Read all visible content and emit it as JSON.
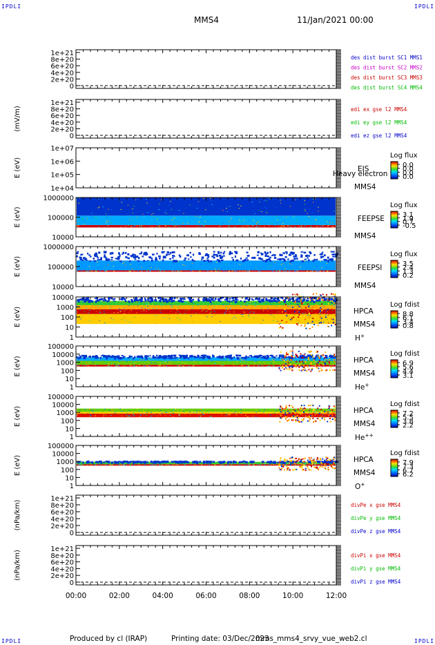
{
  "corner_labels": {
    "top_left": "IPDLI",
    "top_right": "IPDLI",
    "bottom_left": "IPDLI",
    "bottom_right": "IPDLI"
  },
  "header": {
    "spacecraft": "MMS4",
    "date": "11/Jan/2021 00:00"
  },
  "footer": {
    "produced_by": "Produced by cl (IRAP)",
    "printing_date": "Printing date: 03/Dec/2023",
    "script": "mms_mms4_srvy_vue_web2.cl"
  },
  "chart_data": [
    {
      "id": "des_dist",
      "type": "line",
      "ylabel": "",
      "yticks": [
        "0",
        "2e+20",
        "4e+20",
        "6e+20",
        "8e+20",
        "1e+21"
      ],
      "zero_dashed": true,
      "legend": [
        {
          "text": "des dist burst SC1 MMS1",
          "color": "#0000cc"
        },
        {
          "text": "des dist burst SC2 MMS2",
          "color": "#cc00cc"
        },
        {
          "text": "des dist burst SC3 MMS3",
          "color": "#cc0000"
        },
        {
          "text": "des dist burst SC4 MMS4",
          "color": "#00bb00"
        }
      ]
    },
    {
      "id": "edi",
      "type": "line",
      "ylabel": "(mV/m)",
      "yticks": [
        "0",
        "2e+20",
        "4e+20",
        "6e+20",
        "8e+20",
        "1e+21"
      ],
      "zero_dashed": true,
      "legend": [
        {
          "text": "edi ex gse l2 MMS4",
          "color": "#cc0000"
        },
        {
          "text": "edi ey gse l2 MMS4",
          "color": "#00bb00"
        },
        {
          "text": "edi ez gse l2 MMS4",
          "color": "#0000cc"
        }
      ]
    },
    {
      "id": "eis",
      "type": "heatmap",
      "ylabel": "E (eV)",
      "yscale": "log",
      "yticks": [
        "1e+04",
        "1e+05",
        "1e+06",
        "1e+07"
      ],
      "instrument": [
        "EIS",
        "MMS4"
      ],
      "overlay_text": "Heavy electron to",
      "colorbar": {
        "title": "Log flux",
        "ticks": [
          "0.0",
          "0.0",
          "0.0",
          "0.0"
        ]
      },
      "data": "empty"
    },
    {
      "id": "feepse",
      "type": "heatmap",
      "ylabel": "E (eV)",
      "yscale": "log",
      "ylim": [
        10000,
        1000000
      ],
      "yticks": [
        "10000",
        "100000",
        "1000000"
      ],
      "instrument": [
        "FEEPSE",
        "MMS4"
      ],
      "colorbar": {
        "title": "Log flux",
        "ticks": [
          "3.1",
          "1.9",
          "0.7",
          "-0.5"
        ]
      },
      "bands": [
        {
          "e_min": 30000,
          "e_max": 40000,
          "level": "high",
          "color": "#cc0000"
        },
        {
          "e_min": 40000,
          "e_max": 120000,
          "level": "medium",
          "color": "#00aaff"
        },
        {
          "e_min": 120000,
          "e_max": 1000000,
          "level": "low",
          "color": "#0033cc"
        }
      ],
      "x_range": [
        "00:00",
        "12:00"
      ]
    },
    {
      "id": "feepsi",
      "type": "heatmap",
      "ylabel": "E (eV)",
      "yscale": "log",
      "ylim": [
        10000,
        1000000
      ],
      "yticks": [
        "10000",
        "100000",
        "1000000"
      ],
      "instrument": [
        "FEEPSI",
        "MMS4"
      ],
      "colorbar": {
        "title": "Log flux",
        "ticks": [
          "3.5",
          "2.4",
          "1.3",
          "0.2"
        ]
      },
      "bands": [
        {
          "e_min": 55000,
          "e_max": 65000,
          "level": "high",
          "color": "#cc0000"
        },
        {
          "e_min": 65000,
          "e_max": 200000,
          "level": "medium",
          "color": "#0099ff"
        },
        {
          "e_min": 200000,
          "e_max": 600000,
          "level": "sparse",
          "color": "#0033cc"
        }
      ],
      "x_range": [
        "00:00",
        "12:00"
      ]
    },
    {
      "id": "hpca_h",
      "type": "heatmap",
      "ylabel": "E (eV)",
      "yscale": "log",
      "ylim": [
        1,
        10000
      ],
      "yticks": [
        "1",
        "10",
        "100",
        "1000",
        "10000"
      ],
      "instrument": [
        "HPCA",
        "MMS4"
      ],
      "species": {
        "base": "H",
        "sup": "+"
      },
      "colorbar": {
        "title": "Log fdist",
        "ticks": [
          "8.8",
          "6.1",
          "3.4",
          "0.8"
        ]
      },
      "bands": [
        {
          "e_min": 20,
          "e_max": 200,
          "level": "low-mid",
          "color": "#ffcc00"
        },
        {
          "e_min": 200,
          "e_max": 600,
          "level": "high",
          "color": "#cc0000"
        },
        {
          "e_min": 600,
          "e_max": 1500,
          "level": "mid",
          "color": "#ffaa00"
        },
        {
          "e_min": 1500,
          "e_max": 4000,
          "level": "low",
          "color": "#33cc33"
        },
        {
          "e_min": 4000,
          "e_max": 15000,
          "level": "sparse",
          "color": "#0033cc"
        }
      ],
      "enhancement": {
        "from": "09:20",
        "to": "12:00"
      }
    },
    {
      "id": "hpca_he",
      "type": "heatmap",
      "ylabel": "E (eV)",
      "yscale": "log",
      "ylim": [
        1,
        100000
      ],
      "yticks": [
        "1",
        "10",
        "100",
        "1000",
        "10000",
        "100000"
      ],
      "instrument": [
        "HPCA",
        "MMS4"
      ],
      "species": {
        "base": "He",
        "sup": "+"
      },
      "colorbar": {
        "title": "Log fdist",
        "ticks": [
          "6.9",
          "5.6",
          "4.4",
          "3.1"
        ]
      },
      "bands": [
        {
          "e_min": 300,
          "e_max": 500,
          "level": "high",
          "color": "#cc0000"
        },
        {
          "e_min": 500,
          "e_max": 1500,
          "level": "mid",
          "color": "#66cc00"
        },
        {
          "e_min": 1500,
          "e_max": 4000,
          "level": "low",
          "color": "#00aaff"
        },
        {
          "e_min": 4000,
          "e_max": 9000,
          "level": "sparse",
          "color": "#0033cc"
        }
      ],
      "enhancement": {
        "from": "09:20",
        "to": "12:00"
      }
    },
    {
      "id": "hpca_he2",
      "type": "heatmap",
      "ylabel": "E (eV)",
      "yscale": "log",
      "ylim": [
        1,
        100000
      ],
      "yticks": [
        "1",
        "10",
        "100",
        "1000",
        "10000",
        "100000"
      ],
      "instrument": [
        "HPCA",
        "MMS4"
      ],
      "species": {
        "base": "He",
        "sup": "++"
      },
      "colorbar": {
        "title": "Log fdist",
        "ticks": [
          "7.2",
          "5.5",
          "3.8",
          "2.2"
        ]
      },
      "bands": [
        {
          "e_min": 250,
          "e_max": 700,
          "level": "high",
          "color": "#dd1100"
        },
        {
          "e_min": 700,
          "e_max": 1200,
          "level": "mid",
          "color": "#ffcc00"
        },
        {
          "e_min": 1200,
          "e_max": 3000,
          "level": "low",
          "color": "#66cc00"
        }
      ],
      "enhancement": {
        "from": "09:20",
        "to": "12:00"
      }
    },
    {
      "id": "hpca_o",
      "type": "heatmap",
      "ylabel": "E (eV)",
      "yscale": "log",
      "ylim": [
        1,
        100000
      ],
      "yticks": [
        "1",
        "10",
        "100",
        "1000",
        "10000",
        "100000"
      ],
      "instrument": [
        "HPCA",
        "MMS4"
      ],
      "species": {
        "base": "O",
        "sup": "+"
      },
      "colorbar": {
        "title": "Log fdist",
        "ticks": [
          "7.9",
          "7.3",
          "6.7",
          "6.2"
        ]
      },
      "bands": [
        {
          "e_min": 300,
          "e_max": 450,
          "level": "high",
          "color": "#cc0000"
        },
        {
          "e_min": 450,
          "e_max": 900,
          "level": "mid",
          "color": "#33cc33"
        },
        {
          "e_min": 900,
          "e_max": 1300,
          "level": "sparse",
          "color": "#0033cc"
        }
      ],
      "enhancement": {
        "from": "09:20",
        "to": "12:00"
      }
    },
    {
      "id": "divpe",
      "type": "line",
      "ylabel": "(nPa/km)",
      "yticks": [
        "0",
        "2e+20",
        "4e+20",
        "6e+20",
        "8e+20",
        "1e+21"
      ],
      "zero_dashed": true,
      "legend": [
        {
          "text": "divPe x gse MMS4",
          "color": "#cc0000"
        },
        {
          "text": "divPe y gse MMS4",
          "color": "#00bb00"
        },
        {
          "text": "divPe z gse MMS4",
          "color": "#0000cc"
        }
      ]
    },
    {
      "id": "divpi",
      "type": "line",
      "ylabel": "(nPa/km)",
      "yticks": [
        "0",
        "2e+20",
        "4e+20",
        "6e+20",
        "8e+20",
        "1e+21"
      ],
      "zero_dashed": true,
      "legend": [
        {
          "text": "divPi x gse MMS4",
          "color": "#cc0000"
        },
        {
          "text": "divPi y gse MMS4",
          "color": "#00bb00"
        },
        {
          "text": "divPi z gse MMS4",
          "color": "#0000cc"
        }
      ]
    }
  ],
  "x_axis": {
    "ticks": [
      "00:00",
      "02:00",
      "04:00",
      "06:00",
      "08:00",
      "10:00",
      "12:00"
    ]
  }
}
